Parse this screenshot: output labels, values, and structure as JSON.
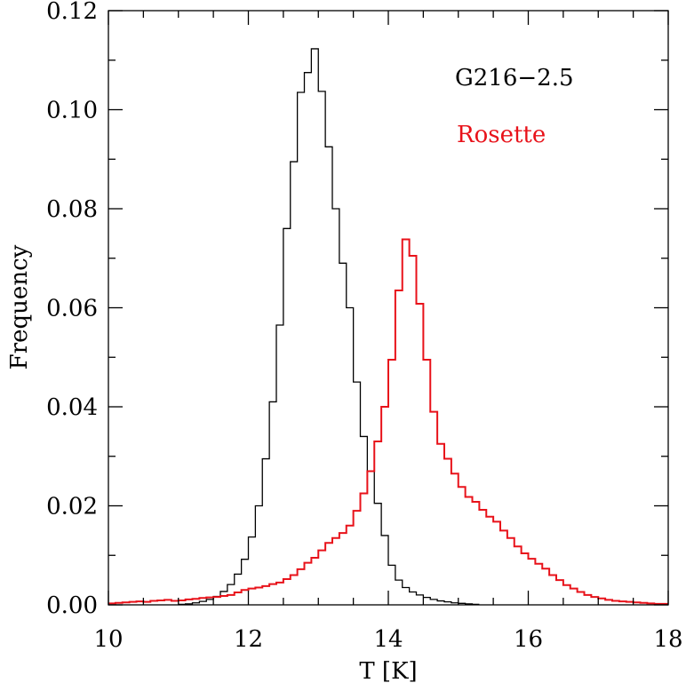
{
  "chart_data": {
    "type": "histogram",
    "title": "",
    "xlabel": "T [K]",
    "ylabel": "Frequency",
    "xlim": [
      10,
      18
    ],
    "ylim": [
      0,
      0.12
    ],
    "x_ticks": [
      "10",
      "12",
      "14",
      "16",
      "18"
    ],
    "y_ticks": [
      "0.00",
      "0.02",
      "0.04",
      "0.06",
      "0.08",
      "0.10",
      "0.12"
    ],
    "bin_width": 0.1,
    "series": [
      {
        "name": "G216−2.5",
        "color": "#000000",
        "bin_start": 11.0,
        "values": [
          0.0001,
          0.0002,
          0.0004,
          0.0007,
          0.0011,
          0.0017,
          0.0027,
          0.0041,
          0.0062,
          0.0092,
          0.0137,
          0.02,
          0.0295,
          0.041,
          0.0565,
          0.076,
          0.0895,
          0.1035,
          0.1075,
          0.1123,
          0.1037,
          0.0925,
          0.08,
          0.069,
          0.06,
          0.045,
          0.034,
          0.027,
          0.0205,
          0.014,
          0.008,
          0.005,
          0.0035,
          0.0026,
          0.002,
          0.0015,
          0.0011,
          0.0008,
          0.0006,
          0.0004,
          0.0003,
          0.0002,
          0.0001
        ]
      },
      {
        "name": "Rosette",
        "color": "#e8121a",
        "bin_start": 10.0,
        "values": [
          0.0003,
          0.0004,
          0.0005,
          0.0006,
          0.0007,
          0.0006,
          0.0008,
          0.0009,
          0.001,
          0.0008,
          0.0009,
          0.0011,
          0.0012,
          0.0014,
          0.0015,
          0.0016,
          0.0018,
          0.002,
          0.0025,
          0.003,
          0.0033,
          0.0035,
          0.0038,
          0.0042,
          0.0045,
          0.0052,
          0.006,
          0.0072,
          0.0085,
          0.0095,
          0.011,
          0.0125,
          0.0135,
          0.0145,
          0.016,
          0.019,
          0.0225,
          0.027,
          0.033,
          0.04,
          0.0495,
          0.0635,
          0.0738,
          0.0705,
          0.0608,
          0.0495,
          0.039,
          0.0325,
          0.0295,
          0.0265,
          0.0238,
          0.0218,
          0.0208,
          0.0192,
          0.0178,
          0.0168,
          0.015,
          0.0135,
          0.0118,
          0.0104,
          0.0093,
          0.0083,
          0.0073,
          0.006,
          0.005,
          0.004,
          0.0033,
          0.0026,
          0.002,
          0.0016,
          0.0013,
          0.001,
          0.0008,
          0.0007,
          0.0006,
          0.0005,
          0.0004,
          0.0003,
          0.0002,
          0.0002
        ]
      }
    ],
    "legend": [
      "G216−2.5",
      "Rosette"
    ],
    "legend_placement": "top-right"
  }
}
